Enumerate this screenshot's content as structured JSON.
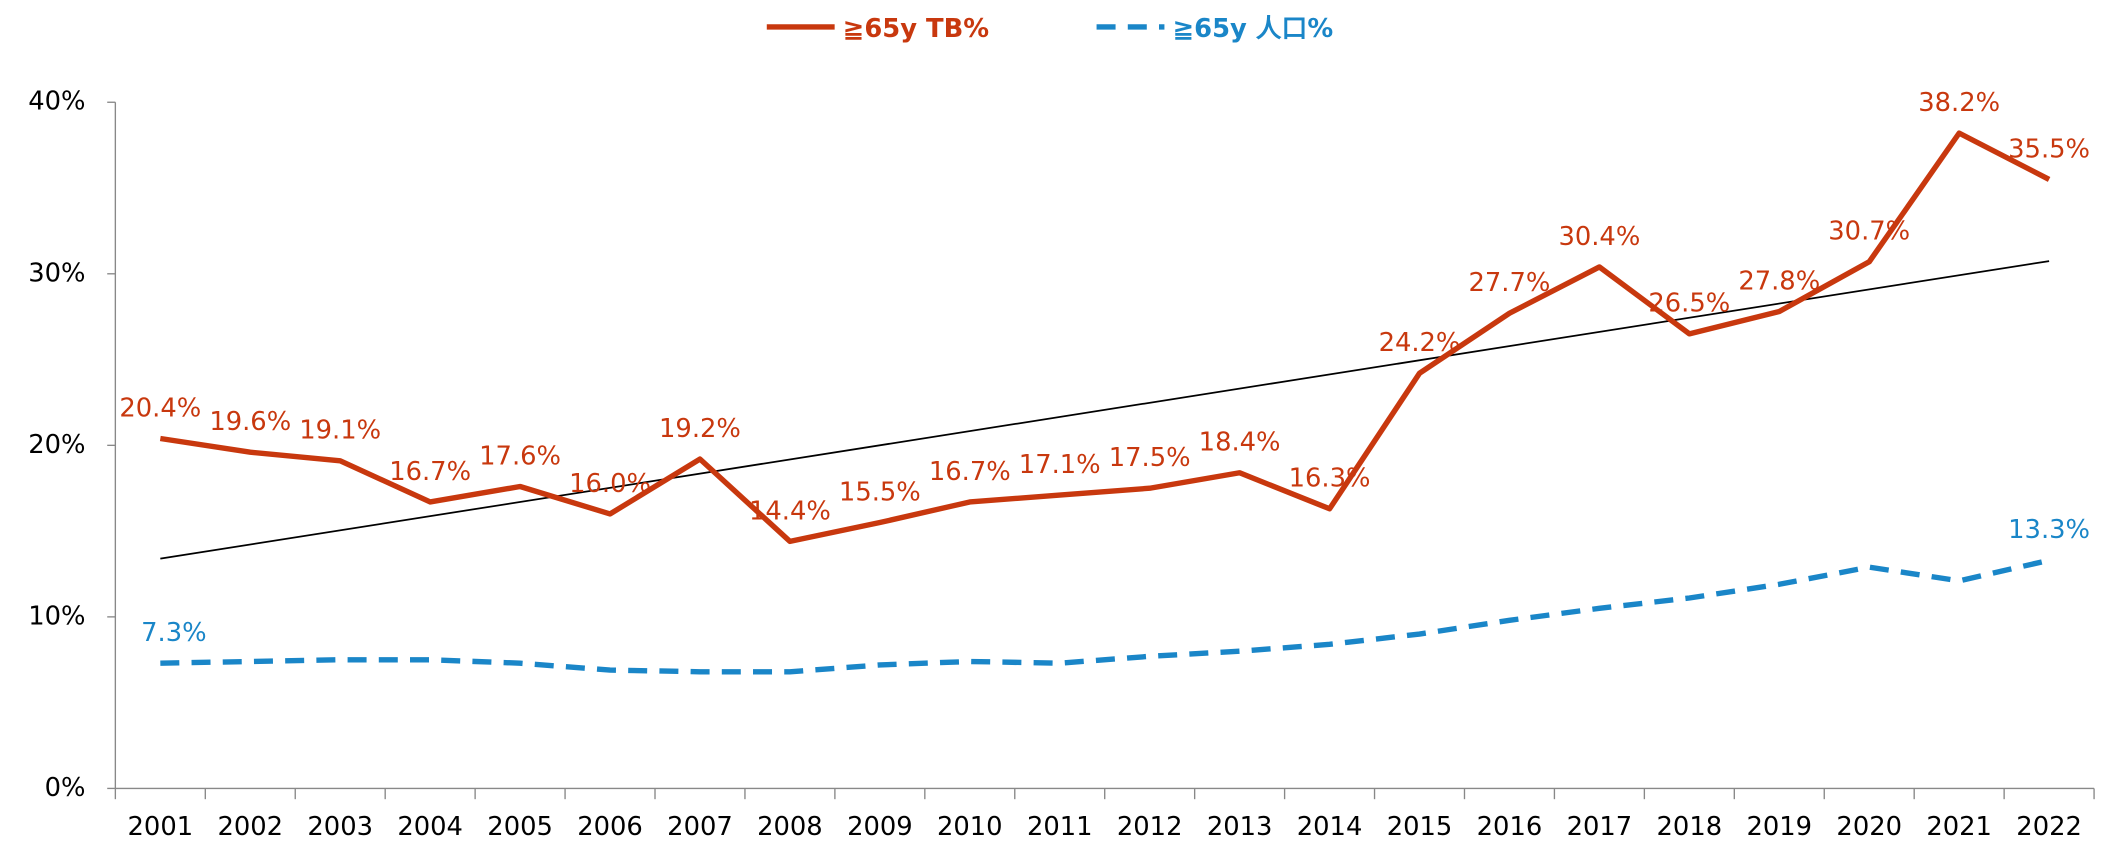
{
  "chart_data": {
    "type": "line",
    "categories": [
      "2001",
      "2002",
      "2003",
      "2004",
      "2005",
      "2006",
      "2007",
      "2008",
      "2009",
      "2010",
      "2011",
      "2012",
      "2013",
      "2014",
      "2015",
      "2016",
      "2017",
      "2018",
      "2019",
      "2020",
      "2021",
      "2022"
    ],
    "series": [
      {
        "name": "≧65y TB%",
        "color": "#c8380e",
        "dash": false,
        "values": [
          20.4,
          19.6,
          19.1,
          16.7,
          17.6,
          16.0,
          19.2,
          14.4,
          15.5,
          16.7,
          17.1,
          17.5,
          18.4,
          16.3,
          24.2,
          27.7,
          30.4,
          26.5,
          27.8,
          30.7,
          38.2,
          35.5
        ],
        "value_labels": [
          "20.4%",
          "19.6%",
          "19.1%",
          "16.7%",
          "17.6%",
          "16.0%",
          "19.2%",
          "14.4%",
          "15.5%",
          "16.7%",
          "17.1%",
          "17.5%",
          "18.4%",
          "16.3%",
          "24.2%",
          "27.7%",
          "30.4%",
          "26.5%",
          "27.8%",
          "30.7%",
          "38.2%",
          "35.5%"
        ],
        "trendline": true
      },
      {
        "name": "≧65y 人口%",
        "color": "#1a86c8",
        "dash": true,
        "values": [
          7.3,
          7.4,
          7.5,
          7.5,
          7.3,
          6.9,
          6.8,
          6.8,
          7.2,
          7.4,
          7.3,
          7.7,
          8.0,
          8.4,
          9.0,
          9.8,
          10.5,
          11.1,
          11.9,
          12.9,
          12.1,
          13.3
        ],
        "value_labels": [
          "7.3%",
          null,
          null,
          null,
          null,
          null,
          null,
          null,
          null,
          null,
          null,
          null,
          null,
          null,
          null,
          null,
          null,
          null,
          null,
          null,
          null,
          "13.3%"
        ],
        "trendline": false
      }
    ],
    "ylim": [
      0,
      40
    ],
    "yticks": [
      {
        "value": 0,
        "label": "0%"
      },
      {
        "value": 10,
        "label": "10%"
      },
      {
        "value": 20,
        "label": "20%"
      },
      {
        "value": 30,
        "label": "30%"
      },
      {
        "value": 40,
        "label": "40%"
      }
    ],
    "legend": "top"
  }
}
